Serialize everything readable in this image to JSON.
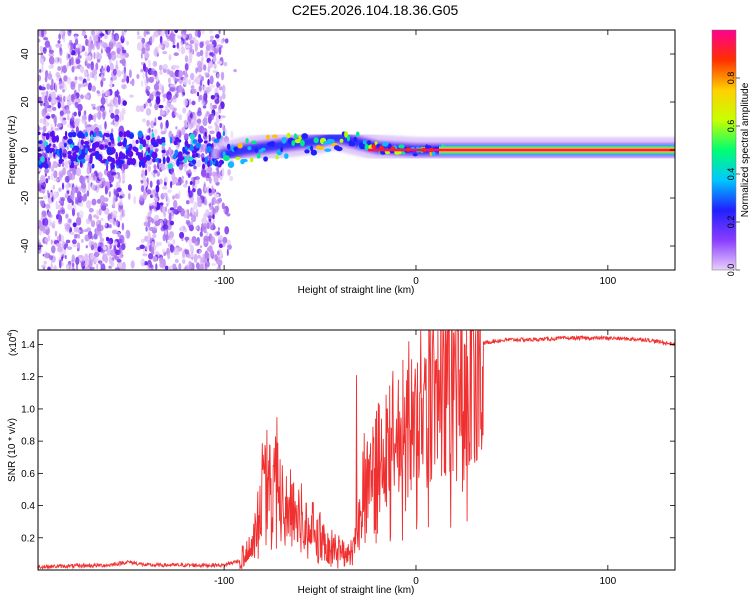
{
  "title": "C2E5.2026.104.18.36.G05",
  "chart_data": [
    {
      "type": "heatmap",
      "name": "spectrogram",
      "xlabel": "Height of straight line (km)",
      "ylabel": "Frequency (Hz)",
      "xlim": [
        -197,
        135
      ],
      "ylim": [
        -50,
        50
      ],
      "xticks": [
        -100,
        0,
        100
      ],
      "xtick_labels": [
        "-100",
        "0",
        "100"
      ],
      "yticks": [
        -40,
        -20,
        0,
        20,
        40
      ],
      "ytick_labels": [
        "-40",
        "-20",
        "0",
        "20",
        "40"
      ],
      "colorbar": {
        "label": "Normalized spectral amplitude",
        "range": [
          0,
          1
        ],
        "ticks": [
          0.0,
          0.2,
          0.4,
          0.6,
          0.8
        ],
        "tick_labels": [
          "0.0",
          "0.2",
          "0.4",
          "0.6",
          "0.8"
        ],
        "colors": [
          "#e8d0fa",
          "#8a3cff",
          "#2020ff",
          "#00c8ff",
          "#00ff70",
          "#c8ff00",
          "#ffd000",
          "#ff3000",
          "#ff0090"
        ]
      },
      "ridge": {
        "x": [
          -100,
          -90,
          -80,
          -70,
          -60,
          -50,
          -45,
          -40,
          -35,
          -30,
          -25,
          -20,
          -10,
          0,
          10,
          135
        ],
        "frequency": [
          -2,
          0,
          1,
          2,
          3,
          4,
          5,
          5,
          4,
          3,
          2,
          1,
          0.5,
          0,
          0,
          0
        ]
      },
      "noise_region": [
        -197,
        -100
      ],
      "gap_region": [
        -152,
        -143
      ]
    },
    {
      "type": "line",
      "name": "snr",
      "xlabel": "Height of straight line (km)",
      "ylabel": "SNR (10 * v/v)",
      "scale_label_main": "(x10",
      "scale_label_exp": "4",
      "scale_label_close": ")",
      "xlim": [
        -197,
        135
      ],
      "ylim": [
        0,
        1.49
      ],
      "xticks": [
        -100,
        0,
        100
      ],
      "xtick_labels": [
        "-100",
        "0",
        "100"
      ],
      "yticks": [
        0.2,
        0.4,
        0.6,
        0.8,
        1.0,
        1.2,
        1.4
      ],
      "ytick_labels": [
        "0.2",
        "0.4",
        "0.6",
        "0.8",
        "1.0",
        "1.2",
        "1.4"
      ],
      "line_color": "#f03030",
      "envelope": {
        "x": [
          -197,
          -160,
          -150,
          -140,
          -100,
          -92,
          -86,
          -82,
          -78,
          -74,
          -70,
          -65,
          -60,
          -55,
          -50,
          -45,
          -40,
          -36,
          -32,
          -29,
          -26,
          -22,
          -18,
          -14,
          -10,
          -6,
          -2,
          2,
          6,
          10,
          14,
          18,
          22,
          26,
          30,
          36,
          40,
          50,
          60,
          80,
          100,
          120,
          135
        ],
        "y": [
          0.02,
          0.03,
          0.05,
          0.03,
          0.03,
          0.06,
          0.12,
          0.35,
          0.55,
          0.58,
          0.42,
          0.32,
          0.28,
          0.22,
          0.18,
          0.12,
          0.1,
          0.08,
          0.12,
          0.35,
          0.55,
          0.65,
          0.7,
          0.78,
          0.85,
          0.9,
          0.95,
          1.0,
          1.05,
          1.12,
          1.2,
          1.27,
          1.32,
          1.36,
          1.39,
          1.41,
          1.42,
          1.43,
          1.43,
          1.44,
          1.44,
          1.43,
          1.4
        ]
      },
      "spikes": [
        {
          "x": -72,
          "y": 0.79
        },
        {
          "x": -79,
          "y": 0.6
        },
        {
          "x": -31,
          "y": 1.21
        },
        {
          "x": -27,
          "y": 0.85
        },
        {
          "x": -15,
          "y": 1.0
        },
        {
          "x": 2,
          "y": 1.1
        },
        {
          "x": 10,
          "y": 1.3
        },
        {
          "x": 12,
          "y": 1.24
        }
      ]
    }
  ]
}
